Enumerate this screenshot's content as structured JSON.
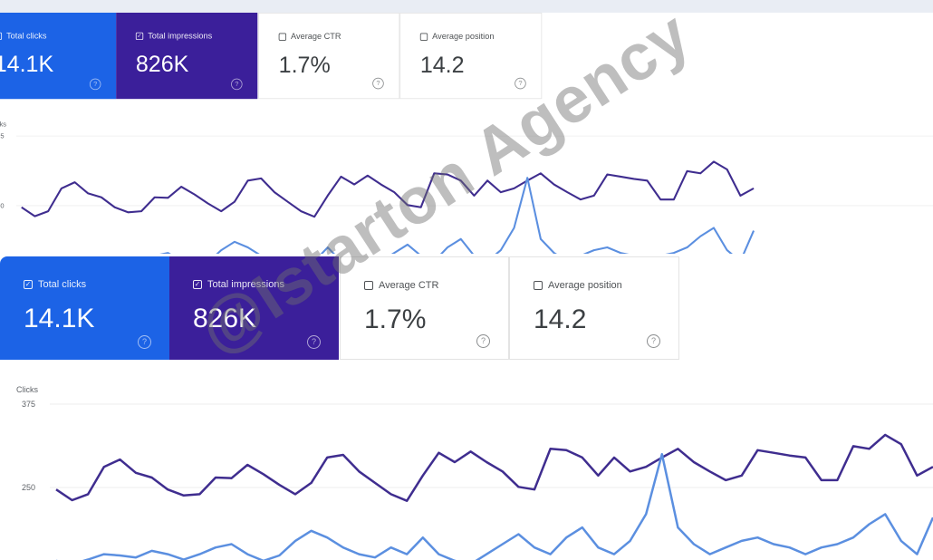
{
  "cards": [
    {
      "label": "Total clicks",
      "value": "14.1K",
      "selected": true
    },
    {
      "label": "Total impressions",
      "value": "826K",
      "selected": true
    },
    {
      "label": "Average CTR",
      "value": "1.7%",
      "selected": false
    },
    {
      "label": "Average position",
      "value": "14.2",
      "selected": false
    }
  ],
  "chart": {
    "ylabel": "Clicks",
    "yticks": [
      "375",
      "250"
    ]
  },
  "chart_data": {
    "type": "line",
    "ylabel": "Clicks",
    "yticks": [
      375,
      250
    ],
    "grid": true,
    "series": [
      {
        "color": "#3f2d8f",
        "values": [
          247,
          231,
          240,
          281,
          292,
          272,
          265,
          247,
          238,
          240,
          265,
          264,
          284,
          270,
          254,
          240,
          257,
          295,
          299,
          274,
          257,
          240,
          230,
          268,
          302,
          288,
          304,
          288,
          274,
          251,
          247,
          308,
          306,
          295,
          268,
          295,
          274,
          281,
          295,
          308,
          288,
          274,
          261,
          268,
          306,
          302,
          298,
          295,
          261,
          261,
          312,
          308,
          329,
          315,
          268,
          281
        ]
      },
      {
        "color": "#5b8fe0",
        "values": [
          140,
          135,
          142,
          150,
          148,
          145,
          155,
          150,
          142,
          150,
          160,
          165,
          150,
          140,
          148,
          170,
          185,
          175,
          160,
          150,
          145,
          160,
          150,
          175,
          150,
          140,
          135,
          150,
          165,
          180,
          160,
          150,
          175,
          190,
          160,
          150,
          170,
          210,
          300,
          190,
          165,
          150,
          160,
          170,
          175,
          165,
          160,
          150,
          160,
          165,
          175,
          195,
          210,
          170,
          150,
          205
        ]
      }
    ]
  },
  "colors": {
    "clicks_card": "#1c63e6",
    "impressions_card": "#3b1f9a"
  },
  "watermark": "@Istarton Agency"
}
